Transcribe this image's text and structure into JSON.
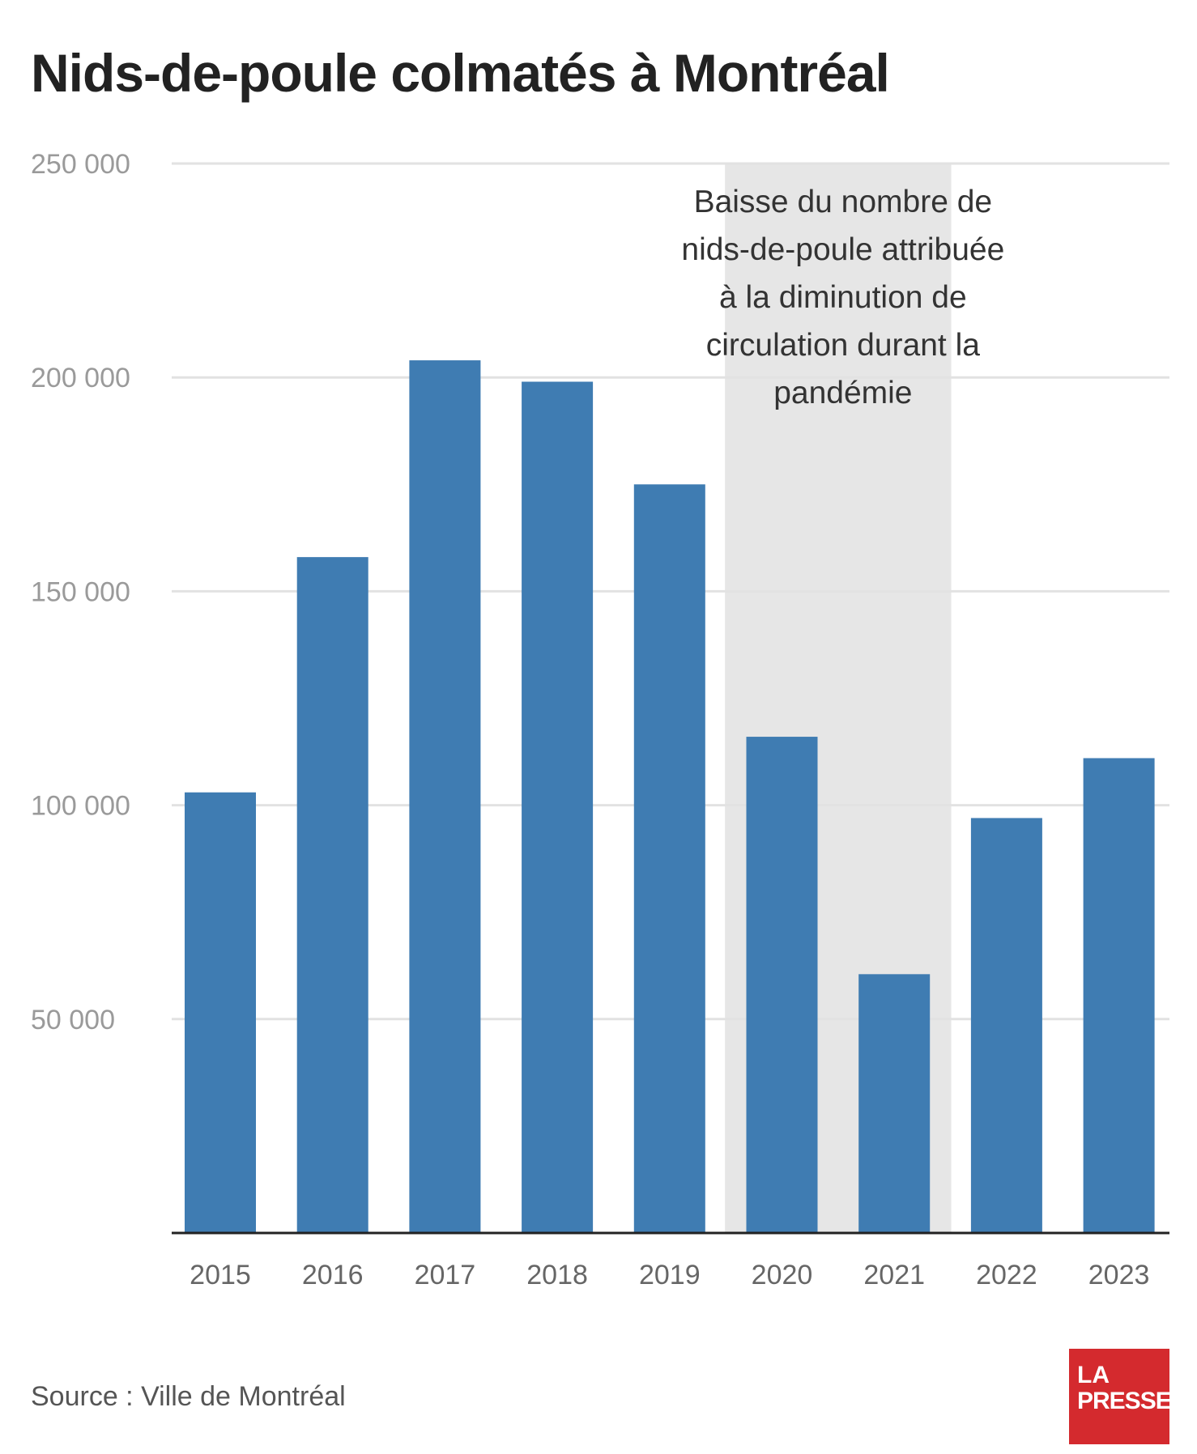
{
  "title": "Nids-de-poule colmatés à Montréal",
  "source": "Source : Ville de Montréal",
  "logo": {
    "line1": "LA",
    "line2": "PRESSE"
  },
  "colors": {
    "bar": "#3f7cb2",
    "highlight_band": "#e6e6e6",
    "grid": "#e2e2e2",
    "axis": "#222222",
    "tick_text": "#9a9a9a",
    "logo_bg": "#d42a2e"
  },
  "chart_data": {
    "type": "bar",
    "title": "Nids-de-poule colmatés à Montréal",
    "xlabel": "",
    "ylabel": "",
    "categories": [
      "2015",
      "2016",
      "2017",
      "2018",
      "2019",
      "2020",
      "2021",
      "2022",
      "2023"
    ],
    "values": [
      103000,
      158000,
      204000,
      199000,
      175000,
      116000,
      60500,
      97000,
      111000
    ],
    "ylim": [
      0,
      250000
    ],
    "y_ticks": [
      50000,
      100000,
      150000,
      200000,
      250000
    ],
    "y_tick_labels": [
      "50 000",
      "100 000",
      "150 000",
      "200 000",
      "250 000"
    ],
    "grid": true,
    "legend": "none",
    "highlight": {
      "from": "2020",
      "to": "2021",
      "annotation": [
        "Baisse du nombre de",
        "nids-de-poule attribuée",
        "à la diminution de",
        "circulation durant la",
        "pandémie"
      ]
    }
  }
}
